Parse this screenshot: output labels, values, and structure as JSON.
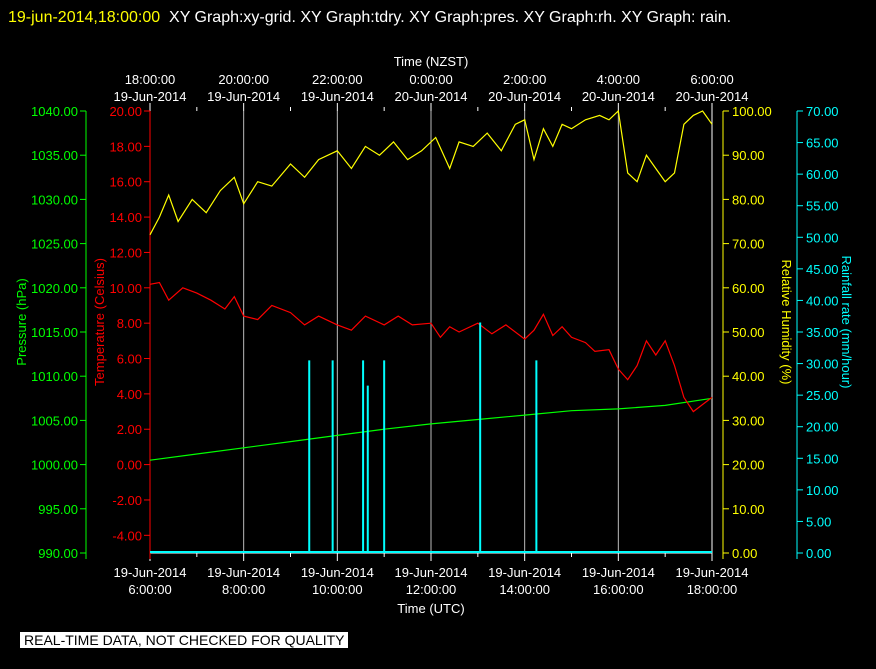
{
  "header": {
    "timestamp": "19-jun-2014,18:00:00",
    "title_rest": "XY Graph:xy-grid.  XY Graph:tdry.  XY Graph:pres.  XY Graph:rh.  XY Graph: rain."
  },
  "disclaimer": "REAL-TIME DATA, NOT CHECKED FOR QUALITY",
  "colors": {
    "background": "#000000",
    "pressure": "#00ff00",
    "temperature": "#ff0000",
    "humidity": "#ffff00",
    "rainfall": "#00ffff",
    "grid": "#ffffff"
  },
  "chart_data": {
    "type": "line",
    "x_top_title": "Time (NZST)",
    "x_bottom_title": "Time (UTC)",
    "x_range_utc_hours": [
      6,
      18
    ],
    "top_ticks": [
      {
        "time": "18:00:00",
        "date": "19-Jun-2014"
      },
      {
        "time": "20:00:00",
        "date": "19-Jun-2014"
      },
      {
        "time": "22:00:00",
        "date": "19-Jun-2014"
      },
      {
        "time": "0:00:00",
        "date": "20-Jun-2014"
      },
      {
        "time": "2:00:00",
        "date": "20-Jun-2014"
      },
      {
        "time": "4:00:00",
        "date": "20-Jun-2014"
      },
      {
        "time": "6:00:00",
        "date": "20-Jun-2014"
      }
    ],
    "bottom_ticks": [
      {
        "date": "19-Jun-2014",
        "time": "6:00:00"
      },
      {
        "date": "19-Jun-2014",
        "time": "8:00:00"
      },
      {
        "date": "19-Jun-2014",
        "time": "10:00:00"
      },
      {
        "date": "19-Jun-2014",
        "time": "12:00:00"
      },
      {
        "date": "19-Jun-2014",
        "time": "14:00:00"
      },
      {
        "date": "19-Jun-2014",
        "time": "16:00:00"
      },
      {
        "date": "19-Jun-2014",
        "time": "18:00:00"
      }
    ],
    "axes": {
      "pressure": {
        "label": "Pressure (hPa)",
        "range": [
          990,
          1040
        ],
        "ticks": [
          "990.00",
          "995.00",
          "1000.00",
          "1005.00",
          "1010.00",
          "1015.00",
          "1020.00",
          "1025.00",
          "1030.00",
          "1035.00",
          "1040.00"
        ]
      },
      "temperature": {
        "label": "Temperature (Celsius)",
        "range": [
          -5,
          20
        ],
        "ticks": [
          "-4.00",
          "-2.00",
          "0.00",
          "2.00",
          "4.00",
          "6.00",
          "8.00",
          "10.00",
          "12.00",
          "14.00",
          "16.00",
          "18.00",
          "20.00"
        ]
      },
      "humidity": {
        "label": "Relative Humidity (%)",
        "range": [
          0,
          100
        ],
        "ticks": [
          "0.00",
          "10.00",
          "20.00",
          "30.00",
          "40.00",
          "50.00",
          "60.00",
          "70.00",
          "80.00",
          "90.00",
          "100.00"
        ]
      },
      "rainfall": {
        "label": "Rainfall rate (mm/hour)",
        "range": [
          0,
          70
        ],
        "ticks": [
          "0.00",
          "5.00",
          "10.00",
          "15.00",
          "20.00",
          "25.00",
          "30.00",
          "35.00",
          "40.00",
          "45.00",
          "50.00",
          "55.00",
          "60.00",
          "65.00",
          "70.00"
        ]
      }
    },
    "series": [
      {
        "name": "Pressure",
        "axis": "pressure",
        "x": [
          6.0,
          7.0,
          8.0,
          9.0,
          10.0,
          11.0,
          12.0,
          13.0,
          14.0,
          15.0,
          16.0,
          17.0,
          18.0
        ],
        "y": [
          1000.5,
          1001.2,
          1001.9,
          1002.6,
          1003.3,
          1004.0,
          1004.6,
          1005.1,
          1005.6,
          1006.1,
          1006.3,
          1006.7,
          1007.5
        ]
      },
      {
        "name": "Temperature",
        "axis": "temperature",
        "x": [
          6.0,
          6.2,
          6.4,
          6.7,
          7.0,
          7.3,
          7.6,
          7.8,
          8.0,
          8.3,
          8.6,
          9.0,
          9.3,
          9.6,
          10.0,
          10.3,
          10.6,
          11.0,
          11.3,
          11.6,
          12.0,
          12.2,
          12.4,
          12.6,
          13.0,
          13.3,
          13.6,
          14.0,
          14.2,
          14.4,
          14.6,
          14.8,
          15.0,
          15.3,
          15.5,
          15.8,
          16.0,
          16.2,
          16.4,
          16.6,
          16.8,
          17.0,
          17.2,
          17.4,
          17.6,
          17.8,
          18.0
        ],
        "y": [
          10.2,
          10.3,
          9.3,
          10.0,
          9.7,
          9.3,
          8.8,
          9.5,
          8.4,
          8.2,
          9.0,
          8.6,
          7.9,
          8.4,
          7.9,
          7.6,
          8.4,
          7.9,
          8.4,
          7.9,
          8.0,
          7.2,
          7.8,
          7.5,
          8.0,
          7.4,
          7.9,
          7.1,
          7.6,
          8.5,
          7.3,
          7.8,
          7.2,
          6.9,
          6.4,
          6.5,
          5.4,
          4.8,
          5.6,
          7.0,
          6.2,
          7.0,
          5.6,
          3.8,
          3.0,
          3.4,
          3.8
        ]
      },
      {
        "name": "Relative Humidity",
        "axis": "humidity",
        "x": [
          6.0,
          6.2,
          6.4,
          6.6,
          6.9,
          7.2,
          7.5,
          7.8,
          8.0,
          8.3,
          8.6,
          9.0,
          9.3,
          9.6,
          10.0,
          10.3,
          10.6,
          10.9,
          11.2,
          11.5,
          11.8,
          12.1,
          12.4,
          12.6,
          12.9,
          13.2,
          13.5,
          13.8,
          14.0,
          14.2,
          14.4,
          14.6,
          14.8,
          15.0,
          15.3,
          15.6,
          15.8,
          16.0,
          16.2,
          16.4,
          16.6,
          16.8,
          17.0,
          17.2,
          17.4,
          17.6,
          17.8,
          18.0
        ],
        "y": [
          72,
          76,
          81,
          75,
          80,
          77,
          82,
          85,
          79,
          84,
          83,
          88,
          85,
          89,
          91,
          87,
          92,
          90,
          93,
          89,
          91,
          94,
          87,
          93,
          92,
          95,
          91,
          97,
          98,
          89,
          96,
          92,
          97,
          96,
          98,
          99,
          98,
          100,
          86,
          84,
          90,
          87,
          84,
          86,
          97,
          99,
          100,
          97
        ]
      },
      {
        "name": "Rainfall rate",
        "axis": "rainfall",
        "type": "bar",
        "x": [
          9.4,
          9.9,
          10.55,
          10.65,
          11.0,
          13.05,
          14.25
        ],
        "y": [
          30.5,
          30.5,
          30.5,
          26.5,
          30.5,
          36.5,
          30.5
        ]
      }
    ]
  }
}
